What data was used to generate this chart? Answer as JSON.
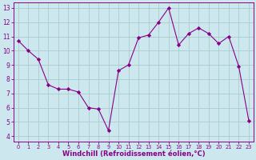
{
  "x": [
    0,
    1,
    2,
    3,
    4,
    5,
    6,
    7,
    8,
    9,
    10,
    11,
    12,
    13,
    14,
    15,
    16,
    17,
    18,
    19,
    20,
    21,
    22,
    23
  ],
  "y": [
    10.7,
    10.0,
    9.4,
    7.6,
    7.3,
    7.3,
    7.1,
    6.0,
    5.9,
    4.4,
    8.6,
    9.0,
    10.9,
    11.1,
    12.0,
    13.0,
    10.4,
    11.2,
    11.6,
    11.2,
    10.5,
    11.0,
    8.9,
    5.1
  ],
  "line_color": "#880088",
  "marker": "D",
  "marker_size": 2.2,
  "bg_color": "#cce8ee",
  "grid_color": "#aacccc",
  "xlabel": "Windchill (Refroidissement éolien,°C)",
  "xlim": [
    -0.5,
    23.5
  ],
  "ylim": [
    3.6,
    13.4
  ],
  "yticks": [
    4,
    5,
    6,
    7,
    8,
    9,
    10,
    11,
    12,
    13
  ],
  "xticks": [
    0,
    1,
    2,
    3,
    4,
    5,
    6,
    7,
    8,
    9,
    10,
    11,
    12,
    13,
    14,
    15,
    16,
    17,
    18,
    19,
    20,
    21,
    22,
    23
  ],
  "tick_color": "#880088",
  "label_color": "#880088",
  "spine_color": "#880088",
  "tick_fontsize": 5.5,
  "xlabel_fontsize": 6.0
}
